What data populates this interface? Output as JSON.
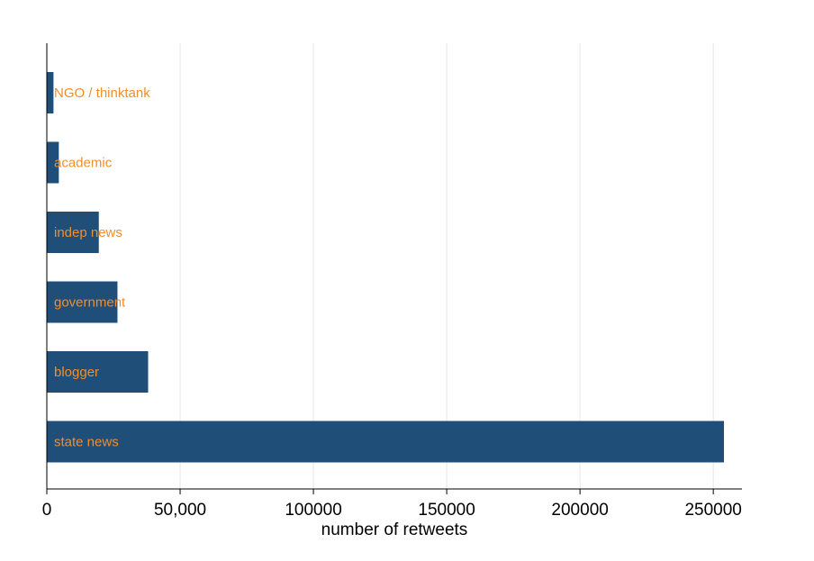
{
  "chart_data": {
    "type": "bar",
    "orientation": "horizontal",
    "title": "",
    "xlabel": "number of retweets",
    "ylabel": "",
    "xlim": [
      0,
      260000
    ],
    "grid": true,
    "categories": [
      "NGO / thinktank",
      "academic",
      "indep news",
      "government",
      "blogger",
      "state news"
    ],
    "values": [
      2500,
      4500,
      19500,
      26500,
      38000,
      254000
    ],
    "x_ticks": [
      {
        "value": 0,
        "label": "0"
      },
      {
        "value": 50000,
        "label": "50,000"
      },
      {
        "value": 100000,
        "label": "100000"
      },
      {
        "value": 150000,
        "label": "150000"
      },
      {
        "value": 200000,
        "label": "200000"
      },
      {
        "value": 250000,
        "label": "250000"
      }
    ],
    "colors": {
      "bar": "#1f4e79",
      "label": "#f28e2b",
      "grid": "#e6e6e6",
      "axis": "#000000"
    }
  }
}
